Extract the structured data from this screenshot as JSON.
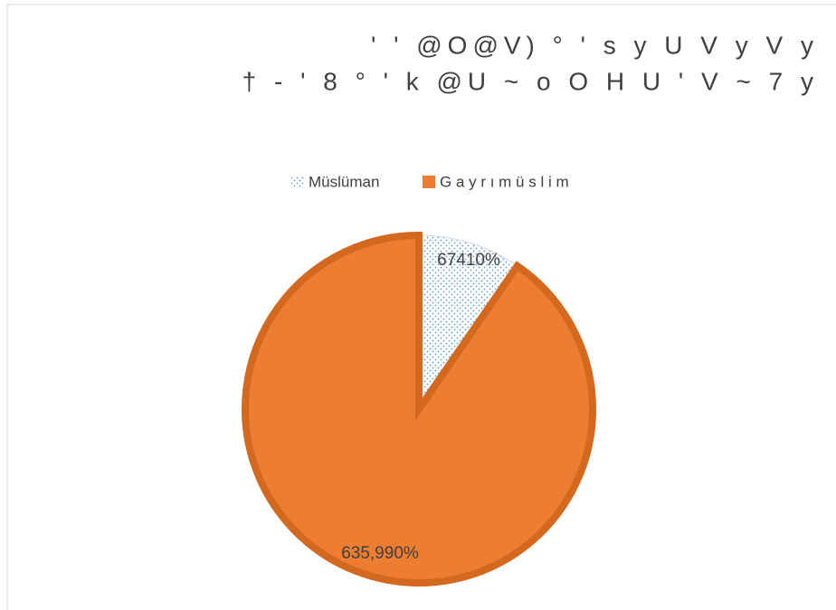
{
  "chart_data": {
    "type": "pie",
    "title": [
      "' ' @O@V) ° ' s y U V y  V y",
      "† - ' 8 ° ' k @U ~ o O H U ' V ~ 7 y"
    ],
    "categories": [
      "Müslüman",
      "G a y r ı  m ü s l i m"
    ],
    "values": [
      67410,
      635990
    ],
    "value_labels": [
      "67410%",
      "635,990%"
    ],
    "colors": [
      "#5b9bd5",
      "#ed7d31"
    ],
    "legend": "top"
  }
}
